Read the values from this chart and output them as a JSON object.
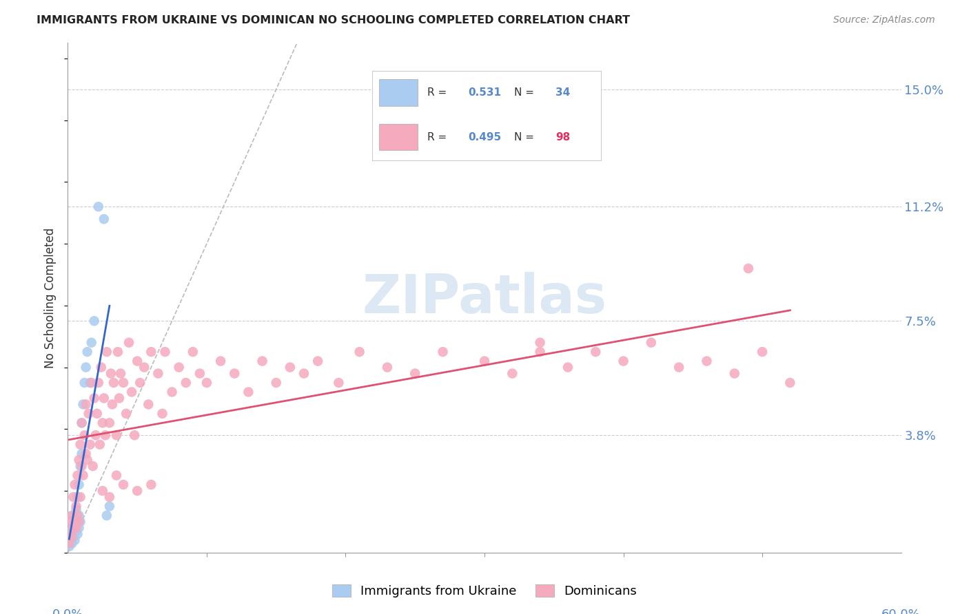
{
  "title": "IMMIGRANTS FROM UKRAINE VS DOMINICAN NO SCHOOLING COMPLETED CORRELATION CHART",
  "source": "Source: ZipAtlas.com",
  "ylabel": "No Schooling Completed",
  "yticks_labels": [
    "3.8%",
    "7.5%",
    "11.2%",
    "15.0%"
  ],
  "ytick_vals": [
    0.038,
    0.075,
    0.112,
    0.15
  ],
  "xlim": [
    0.0,
    0.6
  ],
  "ylim": [
    0.0,
    0.165
  ],
  "legend_r_ukraine": "0.531",
  "legend_n_ukraine": "34",
  "legend_r_dominican": "0.495",
  "legend_n_dominican": "98",
  "ukraine_scatter_color": "#aaccf0",
  "ukraine_line_color": "#3366cc",
  "dominican_scatter_color": "#f5aabe",
  "dominican_line_color": "#e05070",
  "diagonal_color": "#bbbbbb",
  "watermark_text": "ZIPatlas",
  "watermark_color": "#dde8f5",
  "background_color": "#ffffff",
  "grid_color": "#cccccc",
  "ukraine_x": [
    0.001,
    0.002,
    0.002,
    0.003,
    0.003,
    0.004,
    0.004,
    0.004,
    0.005,
    0.005,
    0.006,
    0.006,
    0.006,
    0.007,
    0.007,
    0.007,
    0.008,
    0.008,
    0.008,
    0.009,
    0.009,
    0.01,
    0.01,
    0.011,
    0.012,
    0.013,
    0.014,
    0.016,
    0.017,
    0.019,
    0.022,
    0.026,
    0.028,
    0.03
  ],
  "ukraine_y": [
    0.002,
    0.004,
    0.007,
    0.003,
    0.006,
    0.005,
    0.009,
    0.012,
    0.004,
    0.008,
    0.007,
    0.01,
    0.014,
    0.006,
    0.01,
    0.018,
    0.008,
    0.012,
    0.022,
    0.01,
    0.028,
    0.032,
    0.042,
    0.048,
    0.055,
    0.06,
    0.065,
    0.055,
    0.068,
    0.075,
    0.112,
    0.108,
    0.012,
    0.015
  ],
  "dominican_x": [
    0.001,
    0.002,
    0.002,
    0.003,
    0.003,
    0.004,
    0.004,
    0.005,
    0.005,
    0.006,
    0.006,
    0.007,
    0.007,
    0.008,
    0.008,
    0.009,
    0.009,
    0.01,
    0.01,
    0.011,
    0.012,
    0.013,
    0.013,
    0.014,
    0.015,
    0.016,
    0.017,
    0.018,
    0.019,
    0.02,
    0.021,
    0.022,
    0.023,
    0.024,
    0.025,
    0.026,
    0.027,
    0.028,
    0.03,
    0.031,
    0.032,
    0.033,
    0.035,
    0.036,
    0.037,
    0.038,
    0.04,
    0.042,
    0.044,
    0.046,
    0.048,
    0.05,
    0.052,
    0.055,
    0.058,
    0.06,
    0.065,
    0.068,
    0.07,
    0.075,
    0.08,
    0.085,
    0.09,
    0.095,
    0.1,
    0.11,
    0.12,
    0.13,
    0.14,
    0.15,
    0.16,
    0.17,
    0.18,
    0.195,
    0.21,
    0.23,
    0.25,
    0.27,
    0.3,
    0.32,
    0.34,
    0.36,
    0.38,
    0.4,
    0.42,
    0.44,
    0.46,
    0.48,
    0.5,
    0.52,
    0.025,
    0.03,
    0.035,
    0.04,
    0.05,
    0.06,
    0.34,
    0.49
  ],
  "dominican_y": [
    0.003,
    0.006,
    0.01,
    0.005,
    0.012,
    0.008,
    0.018,
    0.01,
    0.022,
    0.008,
    0.015,
    0.012,
    0.025,
    0.01,
    0.03,
    0.018,
    0.035,
    0.028,
    0.042,
    0.025,
    0.038,
    0.032,
    0.048,
    0.03,
    0.045,
    0.035,
    0.055,
    0.028,
    0.05,
    0.038,
    0.045,
    0.055,
    0.035,
    0.06,
    0.042,
    0.05,
    0.038,
    0.065,
    0.042,
    0.058,
    0.048,
    0.055,
    0.038,
    0.065,
    0.05,
    0.058,
    0.055,
    0.045,
    0.068,
    0.052,
    0.038,
    0.062,
    0.055,
    0.06,
    0.048,
    0.065,
    0.058,
    0.045,
    0.065,
    0.052,
    0.06,
    0.055,
    0.065,
    0.058,
    0.055,
    0.062,
    0.058,
    0.052,
    0.062,
    0.055,
    0.06,
    0.058,
    0.062,
    0.055,
    0.065,
    0.06,
    0.058,
    0.065,
    0.062,
    0.058,
    0.065,
    0.06,
    0.065,
    0.062,
    0.068,
    0.06,
    0.062,
    0.058,
    0.065,
    0.055,
    0.02,
    0.018,
    0.025,
    0.022,
    0.02,
    0.022,
    0.068,
    0.092
  ]
}
